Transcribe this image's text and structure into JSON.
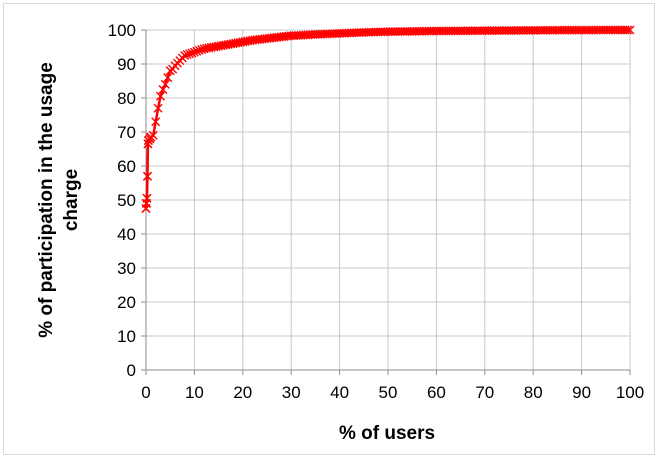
{
  "chart_data": {
    "type": "line",
    "title": "",
    "xlabel": "% of users",
    "ylabel_lines": [
      "% of participation in the usage",
      "charge"
    ],
    "xlim": [
      0,
      100
    ],
    "ylim": [
      0,
      100
    ],
    "x_ticks": [
      0,
      10,
      20,
      30,
      40,
      50,
      60,
      70,
      80,
      90,
      100
    ],
    "y_ticks": [
      0,
      10,
      20,
      30,
      40,
      50,
      60,
      70,
      80,
      90,
      100
    ],
    "grid": true,
    "legend": "none",
    "series": [
      {
        "color": "#ff0000",
        "marker": "x",
        "x": [
          0,
          0.1,
          0.2,
          0.3,
          0.4,
          0.5,
          0.8,
          1,
          1.5,
          2,
          2.5,
          3,
          3.5,
          4,
          4.5,
          5,
          5.5,
          6,
          7,
          8,
          9,
          10,
          12,
          14,
          16,
          18,
          20,
          22,
          25,
          28,
          30,
          35,
          40,
          45,
          50,
          55,
          60,
          65,
          70,
          75,
          80,
          85,
          90,
          95,
          100
        ],
        "y": [
          47.5,
          49,
          50.5,
          57,
          66.5,
          67.5,
          68,
          68.5,
          69,
          73,
          77,
          80.5,
          82.5,
          84,
          86,
          88,
          88.5,
          89.5,
          91,
          92.5,
          93,
          93.5,
          94.5,
          95,
          95.5,
          96,
          96.5,
          97,
          97.5,
          98,
          98.3,
          98.7,
          99,
          99.3,
          99.5,
          99.6,
          99.7,
          99.75,
          99.8,
          99.85,
          99.9,
          99.95,
          99.97,
          99.99,
          100
        ]
      }
    ]
  }
}
